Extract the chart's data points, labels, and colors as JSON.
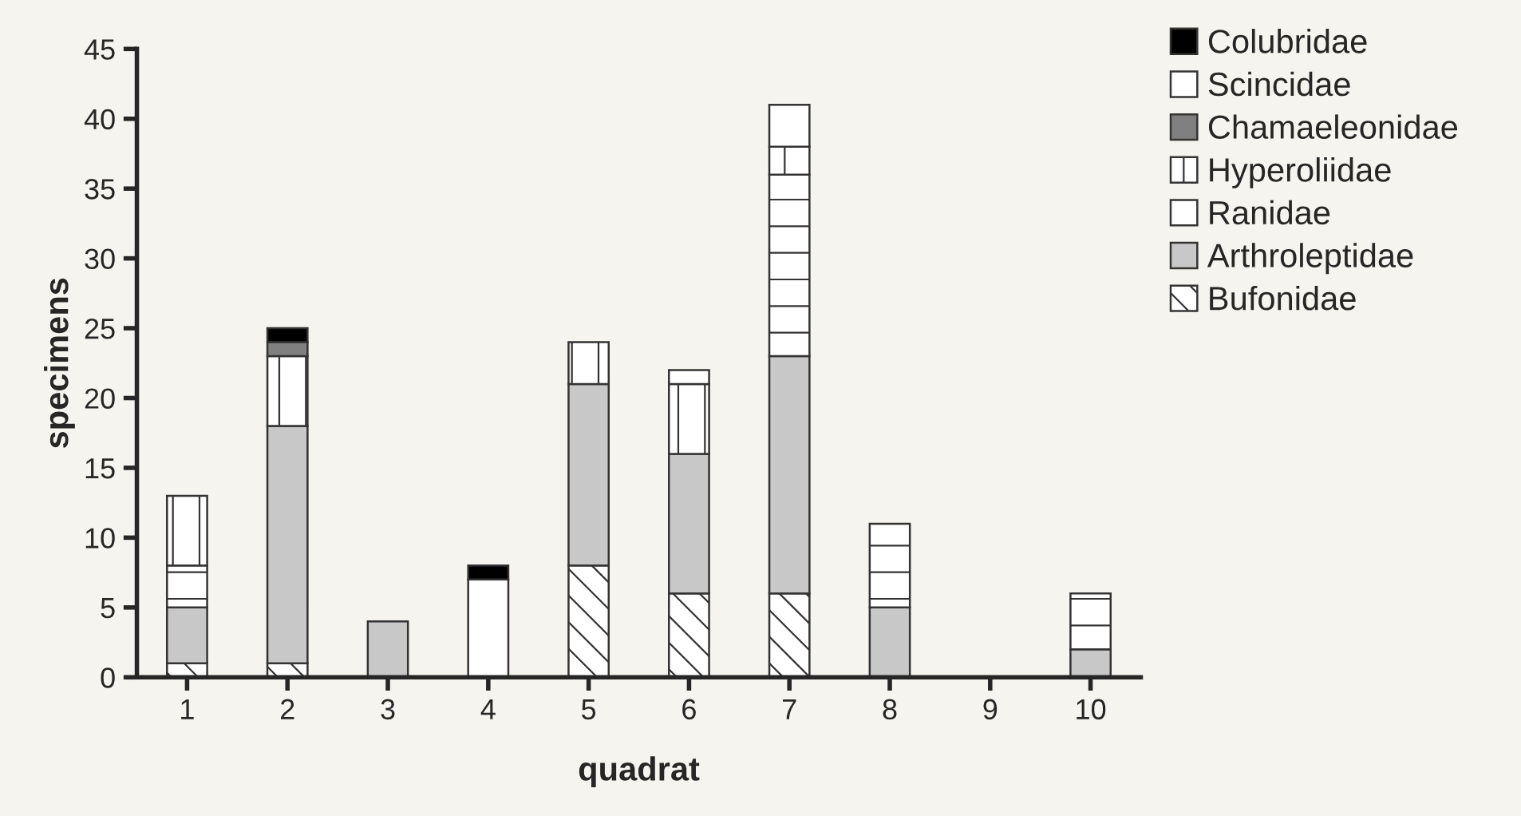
{
  "chart_data": {
    "type": "bar",
    "stacked": true,
    "xlabel": "quadrat",
    "ylabel": "specimens",
    "categories": [
      "1",
      "2",
      "3",
      "4",
      "5",
      "6",
      "7",
      "8",
      "9",
      "10"
    ],
    "ylim": [
      0,
      45
    ],
    "yticks": [
      0,
      5,
      10,
      15,
      20,
      25,
      30,
      35,
      40,
      45
    ],
    "grid": false,
    "legend": "top right",
    "series": [
      {
        "name": "Bufonidae",
        "color": "#333333",
        "values": [
          1,
          1,
          0,
          0,
          8,
          6,
          6,
          0,
          0,
          0
        ]
      },
      {
        "name": "Arthroleptidae",
        "color": "#c8c8c8",
        "values": [
          4,
          17,
          4,
          0,
          13,
          10,
          17,
          5,
          0,
          2
        ]
      },
      {
        "name": "Ranidae",
        "color": "#333333",
        "values": [
          3,
          0,
          0,
          0,
          0,
          0,
          13,
          6,
          0,
          4
        ]
      },
      {
        "name": "Hyperoliidae",
        "color": "#333333",
        "values": [
          5,
          5,
          0,
          0,
          3,
          5,
          2,
          0,
          0,
          0
        ]
      },
      {
        "name": "Chamaeleonidae",
        "color": "#808080",
        "values": [
          0,
          1,
          0,
          0,
          0,
          0,
          0,
          0,
          0,
          0
        ]
      },
      {
        "name": "Scincidae",
        "color": "#ffffff",
        "values": [
          0,
          0,
          0,
          7,
          0,
          1,
          3,
          0,
          0,
          0
        ]
      },
      {
        "name": "Colubridae",
        "color": "#000000",
        "values": [
          0,
          1,
          0,
          1,
          0,
          0,
          0,
          0,
          0,
          0
        ]
      }
    ]
  }
}
